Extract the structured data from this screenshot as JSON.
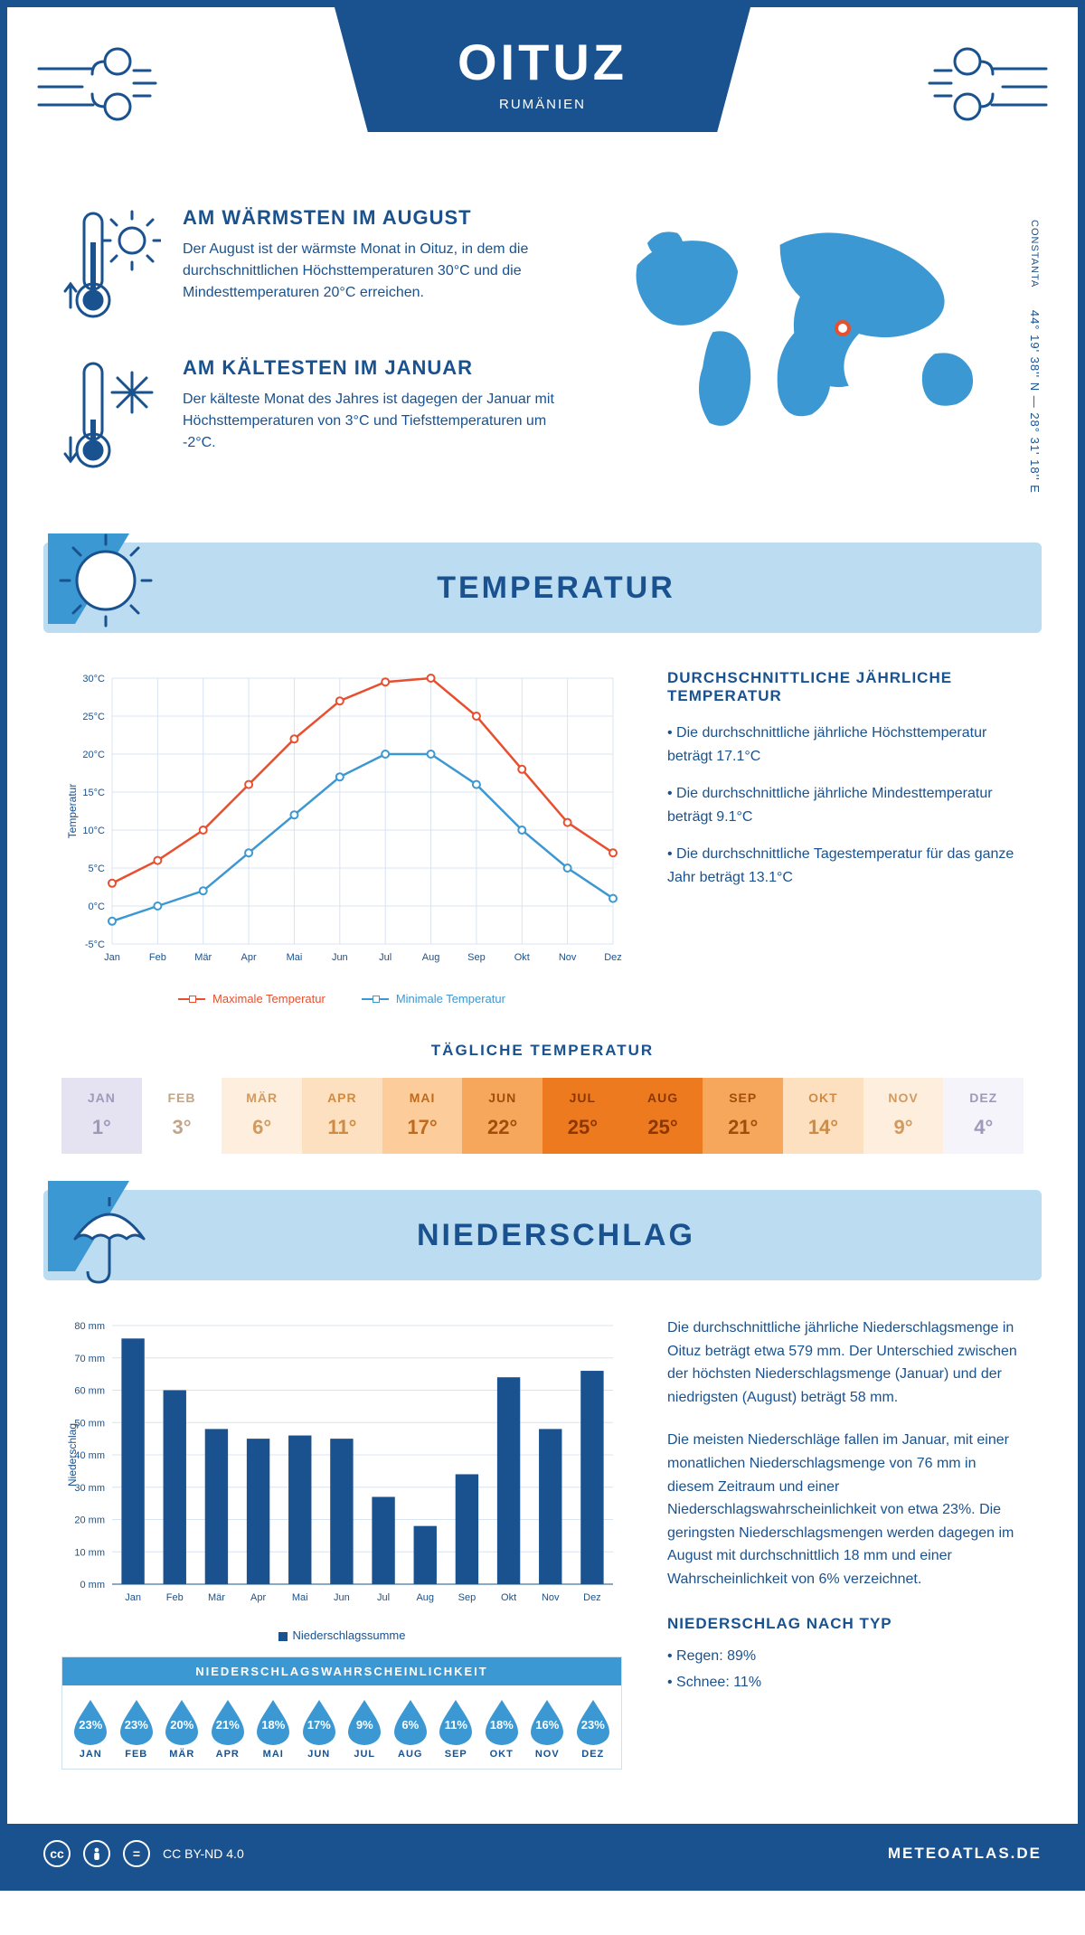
{
  "header": {
    "title": "OITUZ",
    "subtitle": "RUMÄNIEN",
    "accent_color": "#19528f"
  },
  "coords": {
    "ref_city": "CONSTANTA",
    "text": "44° 19' 38'' N — 28° 31' 18'' E"
  },
  "facts": {
    "warm": {
      "title": "AM WÄRMSTEN IM AUGUST",
      "text": "Der August ist der wärmste Monat in Oituz, in dem die durchschnittlichen Höchsttemperaturen 30°C und die Mindesttemperaturen 20°C erreichen."
    },
    "cold": {
      "title": "AM KÄLTESTEN IM JANUAR",
      "text": "Der kälteste Monat des Jahres ist dagegen der Januar mit Höchsttemperaturen von 3°C und Tiefsttemperaturen um -2°C."
    }
  },
  "map": {
    "land_color": "#3b98d3",
    "marker_color": "#e84f2e",
    "marker_left_pct": 55,
    "marker_top_pct": 38
  },
  "sections": {
    "temperature": "TEMPERATUR",
    "precip": "NIEDERSCHLAG"
  },
  "months_short": [
    "Jan",
    "Feb",
    "Mär",
    "Apr",
    "Mai",
    "Jun",
    "Jul",
    "Aug",
    "Sep",
    "Okt",
    "Nov",
    "Dez"
  ],
  "months_upper": [
    "JAN",
    "FEB",
    "MÄR",
    "APR",
    "MAI",
    "JUN",
    "JUL",
    "AUG",
    "SEP",
    "OKT",
    "NOV",
    "DEZ"
  ],
  "temp_chart": {
    "type": "line",
    "y_label": "Temperatur",
    "y_min": -5,
    "y_max": 30,
    "y_step": 5,
    "grid_color": "#d8e4f0",
    "series": [
      {
        "name": "Maximale Temperatur",
        "color": "#e84f2e",
        "values": [
          3,
          6,
          10,
          16,
          22,
          27,
          29.5,
          30,
          25,
          18,
          11,
          7
        ]
      },
      {
        "name": "Minimale Temperatur",
        "color": "#3b98d3",
        "values": [
          -2,
          0,
          2,
          7,
          12,
          17,
          20,
          20,
          16,
          10,
          5,
          1
        ]
      }
    ]
  },
  "temp_text": {
    "title": "DURCHSCHNITTLICHE JÄHRLICHE TEMPERATUR",
    "p1": "• Die durchschnittliche jährliche Höchsttemperatur beträgt 17.1°C",
    "p2": "• Die durchschnittliche jährliche Mindesttemperatur beträgt 9.1°C",
    "p3": "• Die durchschnittliche Tagestemperatur für das ganze Jahr beträgt 13.1°C"
  },
  "daily": {
    "title": "TÄGLICHE TEMPERATUR",
    "cells": [
      {
        "mon": "JAN",
        "val": "1°",
        "bg": "#e5e3f2",
        "fg": "#9d9ab9"
      },
      {
        "mon": "FEB",
        "val": "3°",
        "bg": "#ffffff",
        "fg": "#c0a58a"
      },
      {
        "mon": "MÄR",
        "val": "6°",
        "bg": "#fdeedd",
        "fg": "#d19a60"
      },
      {
        "mon": "APR",
        "val": "11°",
        "bg": "#fde0c0",
        "fg": "#cf8b43"
      },
      {
        "mon": "MAI",
        "val": "17°",
        "bg": "#fccd9a",
        "fg": "#bf6a1f"
      },
      {
        "mon": "JUN",
        "val": "22°",
        "bg": "#f7a75c",
        "fg": "#a24d0b"
      },
      {
        "mon": "JUL",
        "val": "25°",
        "bg": "#ee7a1f",
        "fg": "#8c3602"
      },
      {
        "mon": "AUG",
        "val": "25°",
        "bg": "#ee7a1f",
        "fg": "#8c3602"
      },
      {
        "mon": "SEP",
        "val": "21°",
        "bg": "#f7a75c",
        "fg": "#a24d0b"
      },
      {
        "mon": "OKT",
        "val": "14°",
        "bg": "#fde0c0",
        "fg": "#cf8b43"
      },
      {
        "mon": "NOV",
        "val": "9°",
        "bg": "#fdeedd",
        "fg": "#d19a60"
      },
      {
        "mon": "DEZ",
        "val": "4°",
        "bg": "#f5f4fb",
        "fg": "#9d9ab9"
      }
    ]
  },
  "precip_chart": {
    "type": "bar",
    "y_label": "Niederschlag",
    "y_min": 0,
    "y_max": 80,
    "y_step": 10,
    "values": [
      76,
      60,
      48,
      45,
      46,
      45,
      27,
      18,
      34,
      64,
      48,
      66
    ],
    "bar_color": "#19528f",
    "grid_color": "#d8e4f0",
    "legend": "Niederschlagssumme"
  },
  "precip_text": {
    "p1": "Die durchschnittliche jährliche Niederschlagsmenge in Oituz beträgt etwa 579 mm. Der Unterschied zwischen der höchsten Niederschlagsmenge (Januar) und der niedrigsten (August) beträgt 58 mm.",
    "p2": "Die meisten Niederschläge fallen im Januar, mit einer monatlichen Niederschlagsmenge von 76 mm in diesem Zeitraum und einer Niederschlagswahrscheinlichkeit von etwa 23%. Die geringsten Niederschlagsmengen werden dagegen im August mit durchschnittlich 18 mm und einer Wahrscheinlichkeit von 6% verzeichnet.",
    "type_title": "NIEDERSCHLAG NACH TYP",
    "type_line1": "• Regen: 89%",
    "type_line2": "• Schnee: 11%"
  },
  "probability": {
    "title": "NIEDERSCHLAGSWAHRSCHEINLICHKEIT",
    "values": [
      23,
      23,
      20,
      21,
      18,
      17,
      9,
      6,
      11,
      18,
      16,
      23
    ],
    "drop_color": "#3b98d3"
  },
  "footer": {
    "license": "CC BY-ND 4.0",
    "site": "METEOATLAS.DE"
  }
}
